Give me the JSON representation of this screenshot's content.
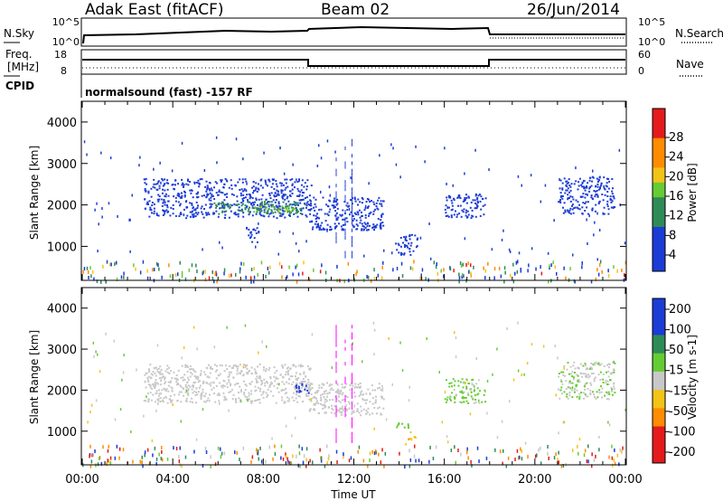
{
  "header": {
    "title": "Adak East (fitACF)",
    "beam": "Beam 02",
    "date": "26/Jun/2014"
  },
  "summary_panels": {
    "nsky_label": "N.Sky",
    "nsearch_label": "N.Search",
    "noise_ticks": [
      "10^5",
      "10^0"
    ],
    "freq_label_1": "Freq.",
    "freq_label_2": "[MHz]",
    "freq_ticks": [
      "18",
      "8"
    ],
    "nave_label": "Nave",
    "nave_ticks": [
      "60",
      "0"
    ],
    "cpid_label": "CPID",
    "cpid_text": "normalsound (fast) -157 RF"
  },
  "colors": {
    "blue": "#1c3cd6",
    "darkgreen": "#2e8b57",
    "lightgreen": "#66cc33",
    "yellow": "#f2c318",
    "orange": "#ff8c00",
    "red": "#e41a1c",
    "grey": "#c8c8c8",
    "cpid_marker": "#ff00ff"
  },
  "chart_data": [
    {
      "type": "heatmap",
      "panel": "power",
      "ylabel": "Slant Range [km]",
      "xlabel": "",
      "ylim": [
        180,
        4500
      ],
      "y_ticks": [
        "1000",
        "2000",
        "3000",
        "4000"
      ],
      "x_ticks": [
        "00:00",
        "04:00",
        "08:00",
        "12:00",
        "16:00",
        "20:00",
        "00:00"
      ],
      "colorbar_label": "Power [dB]",
      "colorbar_ticks": [
        "28",
        "24",
        "20",
        "16",
        "12",
        "8",
        "4"
      ],
      "colorbar_range": [
        0,
        30
      ],
      "echo_regions": [
        {
          "t_start": 2.7,
          "t_end": 10.1,
          "range_start": 1700,
          "range_end": 2650,
          "power_db": 4
        },
        {
          "t_start": 5.8,
          "t_end": 9.9,
          "range_start": 1800,
          "range_end": 2100,
          "power_db": 12
        },
        {
          "t_start": 7.5,
          "t_end": 9.6,
          "range_start": 1850,
          "range_end": 2000,
          "power_db": 18
        },
        {
          "t_start": 10.0,
          "t_end": 13.3,
          "range_start": 1400,
          "range_end": 2200,
          "power_db": 5
        },
        {
          "t_start": 13.8,
          "t_end": 14.8,
          "range_start": 800,
          "range_end": 1300,
          "power_db": 5
        },
        {
          "t_start": 16.0,
          "t_end": 17.8,
          "range_start": 1700,
          "range_end": 2300,
          "power_db": 4
        },
        {
          "t_start": 21.0,
          "t_end": 23.5,
          "range_start": 1800,
          "range_end": 2700,
          "power_db": 5
        },
        {
          "t_start": 7.2,
          "t_end": 7.8,
          "range_start": 1100,
          "range_end": 1500,
          "power_db": 5
        }
      ]
    },
    {
      "type": "heatmap",
      "panel": "velocity",
      "ylabel": "Slant Range [km]",
      "xlabel": "Time UT",
      "ylim": [
        180,
        4500
      ],
      "y_ticks": [
        "1000",
        "2000",
        "3000",
        "4000"
      ],
      "x_ticks": [
        "00:00",
        "04:00",
        "08:00",
        "12:00",
        "16:00",
        "20:00",
        "00:00"
      ],
      "colorbar_label": "Velocity [m s-1]",
      "colorbar_ticks": [
        "200",
        "100",
        "50",
        "15",
        "-15",
        "-50",
        "-100",
        "-200"
      ],
      "colorbar_range": [
        -250,
        250
      ],
      "echo_regions": [
        {
          "t_start": 2.7,
          "t_end": 10.1,
          "range_start": 1700,
          "range_end": 2650,
          "velocity": 0
        },
        {
          "t_start": 9.4,
          "t_end": 10.0,
          "range_start": 1900,
          "range_end": 2200,
          "velocity": 150
        },
        {
          "t_start": 10.0,
          "t_end": 13.3,
          "range_start": 1400,
          "range_end": 2200,
          "velocity": 0
        },
        {
          "t_start": 13.8,
          "t_end": 14.5,
          "range_start": 1100,
          "range_end": 1250,
          "velocity": 40
        },
        {
          "t_start": 14.3,
          "t_end": 14.8,
          "range_start": 800,
          "range_end": 1000,
          "velocity": -40
        },
        {
          "t_start": 16.0,
          "t_end": 17.8,
          "range_start": 1700,
          "range_end": 2300,
          "velocity": 20
        },
        {
          "t_start": 21.0,
          "t_end": 23.5,
          "range_start": 1800,
          "range_end": 2700,
          "velocity": 10
        }
      ]
    }
  ]
}
